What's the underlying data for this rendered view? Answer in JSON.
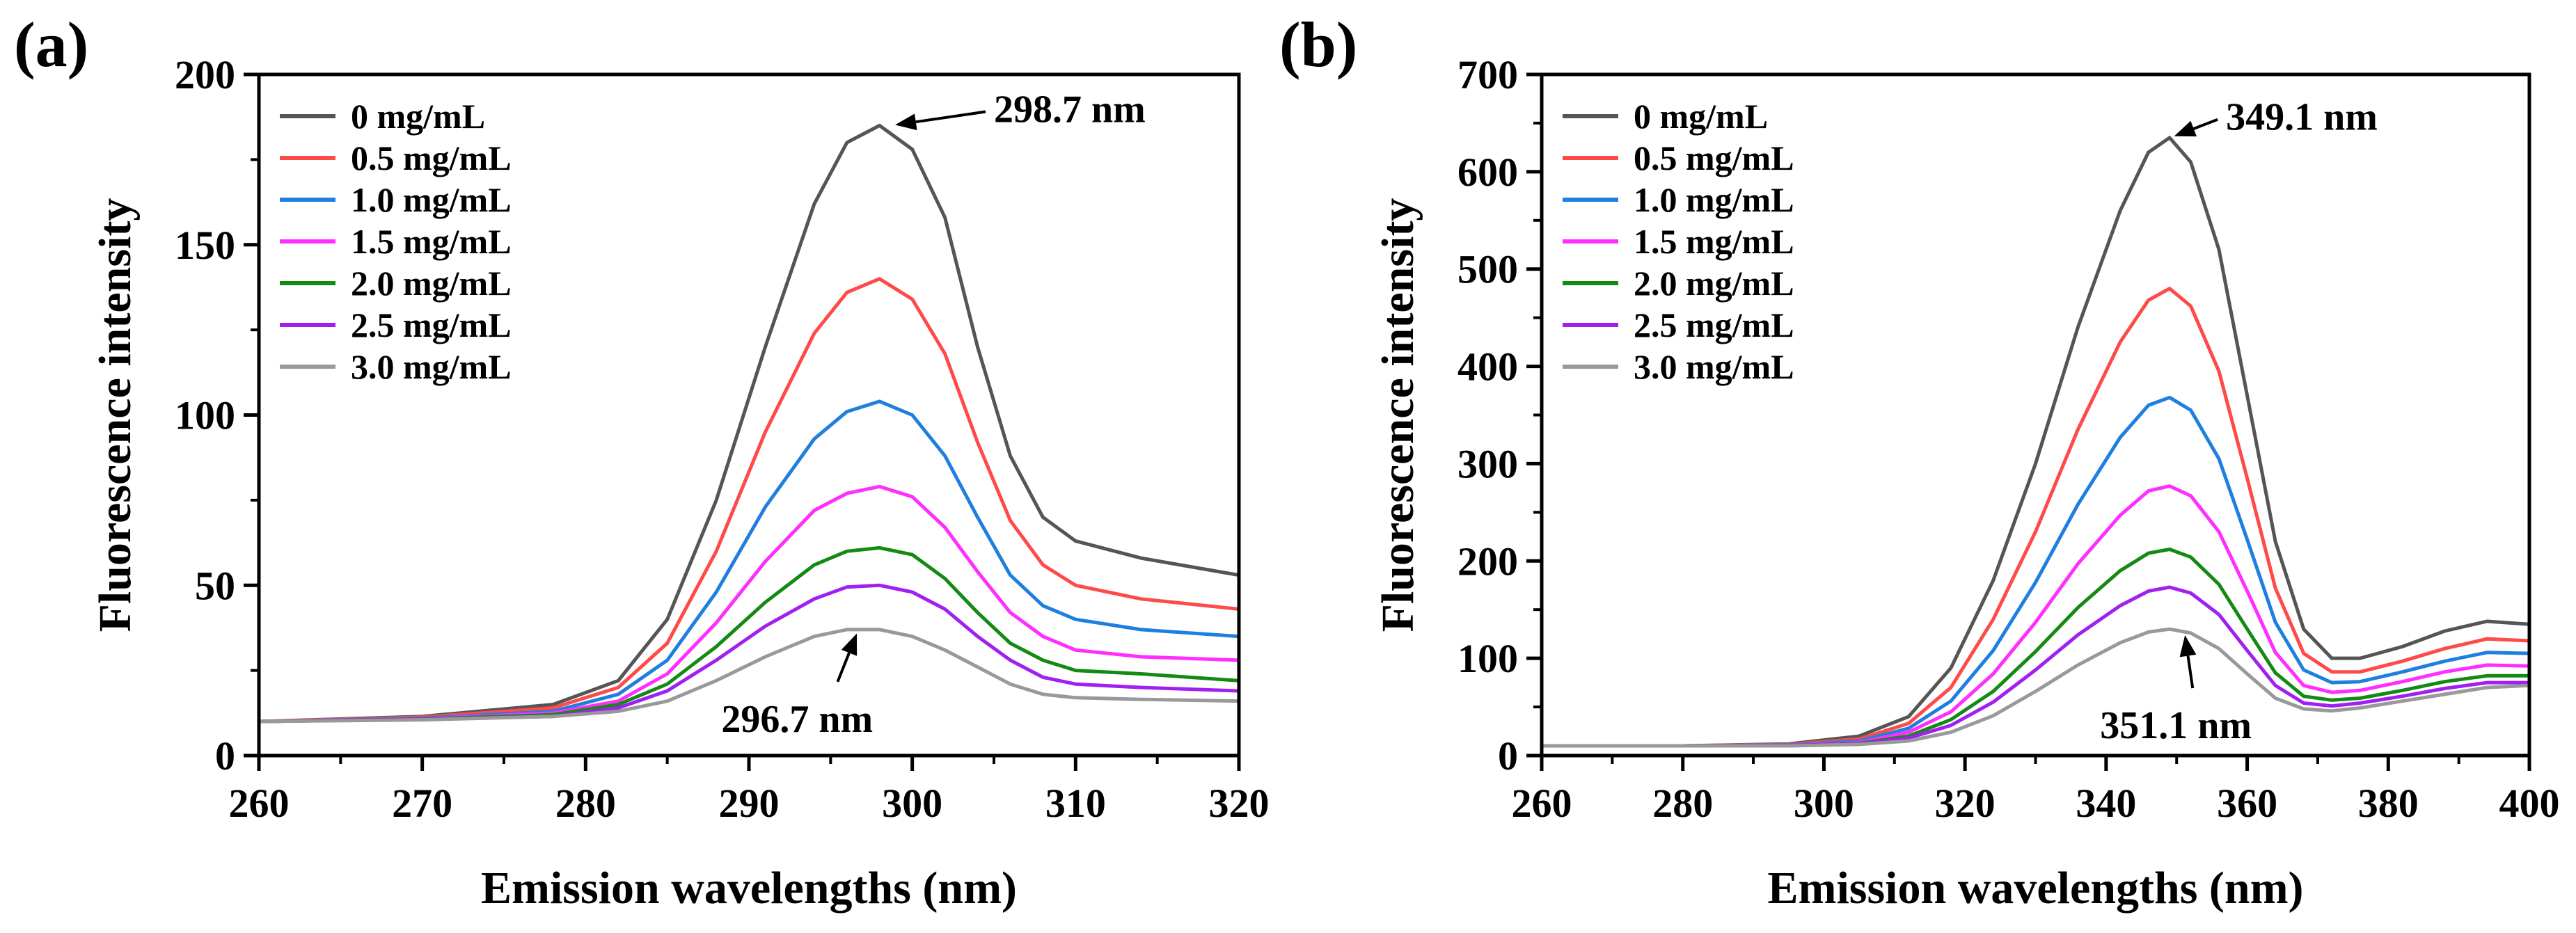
{
  "chart_data": [
    {
      "panel_label": "(a)",
      "type": "line",
      "xlabel": "Emission wavelengths (nm)",
      "ylabel": "Fluorescence intensity",
      "xlim": [
        260,
        320
      ],
      "ylim": [
        0,
        200
      ],
      "xticks": [
        260,
        270,
        280,
        290,
        300,
        310,
        320
      ],
      "yticks": [
        0,
        50,
        100,
        150,
        200
      ],
      "legend_position": "top-left",
      "series": [
        {
          "name": "0 mg/mL",
          "color": "#555555",
          "x": [
            260,
            270,
            278,
            282,
            285,
            288,
            291,
            294,
            296,
            298,
            300,
            302,
            304,
            306,
            308,
            310,
            314,
            320
          ],
          "y": [
            10,
            11.5,
            15,
            22,
            40,
            75,
            120,
            162,
            180,
            185,
            178,
            158,
            120,
            88,
            70,
            63,
            58,
            53
          ]
        },
        {
          "name": "0.5 mg/mL",
          "color": "#ff4a4a",
          "x": [
            260,
            270,
            278,
            282,
            285,
            288,
            291,
            294,
            296,
            298,
            300,
            302,
            304,
            306,
            308,
            310,
            314,
            320
          ],
          "y": [
            10,
            11.3,
            14,
            20,
            33,
            60,
            95,
            124,
            136,
            140,
            134,
            118,
            92,
            69,
            56,
            50,
            46,
            43
          ]
        },
        {
          "name": "1.0 mg/mL",
          "color": "#1e7fe0",
          "x": [
            260,
            270,
            278,
            282,
            285,
            288,
            291,
            294,
            296,
            298,
            300,
            302,
            304,
            306,
            308,
            310,
            314,
            320
          ],
          "y": [
            10,
            11,
            13,
            18,
            28,
            48,
            73,
            93,
            101,
            104,
            100,
            88,
            70,
            53,
            44,
            40,
            37,
            35
          ]
        },
        {
          "name": "1.5 mg/mL",
          "color": "#ff2eff",
          "x": [
            260,
            270,
            278,
            282,
            285,
            288,
            291,
            294,
            296,
            298,
            300,
            302,
            304,
            306,
            308,
            310,
            314,
            320
          ],
          "y": [
            10,
            10.8,
            12.5,
            16,
            24,
            39,
            57,
            72,
            77,
            79,
            76,
            67,
            54,
            42,
            35,
            31,
            29,
            28
          ]
        },
        {
          "name": "2.0 mg/mL",
          "color": "#138a13",
          "x": [
            260,
            270,
            278,
            282,
            285,
            288,
            291,
            294,
            296,
            298,
            300,
            302,
            304,
            306,
            308,
            310,
            314,
            320
          ],
          "y": [
            10,
            10.7,
            12,
            15,
            21,
            32,
            45,
            56,
            60,
            61,
            59,
            52,
            42,
            33,
            28,
            25,
            24,
            22
          ]
        },
        {
          "name": "2.5 mg/mL",
          "color": "#a020f0",
          "x": [
            260,
            270,
            278,
            282,
            285,
            288,
            291,
            294,
            296,
            298,
            300,
            302,
            304,
            306,
            308,
            310,
            314,
            320
          ],
          "y": [
            10,
            10.6,
            11.5,
            14,
            19,
            28,
            38,
            46,
            49.5,
            50,
            48,
            43,
            35,
            28,
            23,
            21,
            20,
            19
          ]
        },
        {
          "name": "3.0 mg/mL",
          "color": "#999999",
          "x": [
            260,
            270,
            278,
            282,
            285,
            288,
            291,
            294,
            296,
            298,
            300,
            302,
            304,
            306,
            308,
            310,
            314,
            320
          ],
          "y": [
            10,
            10.5,
            11.5,
            13,
            16,
            22,
            29,
            35,
            37,
            37,
            35,
            31,
            26,
            21,
            18,
            17,
            16.5,
            16
          ]
        }
      ],
      "annotations": [
        {
          "text": "298.7 nm",
          "x": 298.7,
          "y": 185,
          "text_x": 305,
          "text_y": 186
        },
        {
          "text": "296.7 nm",
          "x": 296.7,
          "y": 37,
          "text_x": 293,
          "text_y": 9
        }
      ]
    },
    {
      "panel_label": "(b)",
      "type": "line",
      "xlabel": "Emission wavelengths (nm)",
      "ylabel": "Fluorescence intensity",
      "xlim": [
        260,
        400
      ],
      "ylim": [
        0,
        700
      ],
      "xticks": [
        260,
        280,
        300,
        320,
        340,
        360,
        380,
        400
      ],
      "yticks": [
        0,
        100,
        200,
        300,
        400,
        500,
        600,
        700
      ],
      "legend_position": "top-left",
      "series": [
        {
          "name": "0 mg/mL",
          "color": "#555555",
          "x": [
            260,
            280,
            295,
            305,
            312,
            318,
            324,
            330,
            336,
            342,
            346,
            349,
            352,
            356,
            360,
            364,
            368,
            372,
            376,
            382,
            388,
            394,
            400
          ],
          "y": [
            10,
            10,
            12,
            20,
            40,
            90,
            180,
            300,
            440,
            560,
            620,
            635,
            610,
            520,
            370,
            220,
            130,
            100,
            100,
            112,
            128,
            138,
            135
          ]
        },
        {
          "name": "0.5 mg/mL",
          "color": "#ff4a4a",
          "x": [
            260,
            280,
            295,
            305,
            312,
            318,
            324,
            330,
            336,
            342,
            346,
            349,
            352,
            356,
            360,
            364,
            368,
            372,
            376,
            382,
            388,
            394,
            400
          ],
          "y": [
            10,
            10,
            11.5,
            17,
            33,
            70,
            140,
            230,
            335,
            425,
            468,
            480,
            462,
            395,
            285,
            172,
            105,
            86,
            86,
            97,
            110,
            120,
            118
          ]
        },
        {
          "name": "1.0 mg/mL",
          "color": "#1e7fe0",
          "x": [
            260,
            280,
            295,
            305,
            312,
            318,
            324,
            330,
            336,
            342,
            346,
            349,
            352,
            356,
            360,
            364,
            368,
            372,
            376,
            382,
            388,
            394,
            400
          ],
          "y": [
            10,
            10,
            11,
            15,
            28,
            56,
            108,
            178,
            258,
            327,
            360,
            368,
            355,
            305,
            222,
            137,
            88,
            75,
            76,
            86,
            97,
            106,
            105
          ]
        },
        {
          "name": "1.5 mg/mL",
          "color": "#ff2eff",
          "x": [
            260,
            280,
            295,
            305,
            312,
            318,
            324,
            330,
            336,
            342,
            346,
            349,
            352,
            356,
            360,
            364,
            368,
            372,
            376,
            382,
            388,
            394,
            400
          ],
          "y": [
            10,
            10,
            10.5,
            13.5,
            24,
            45,
            84,
            137,
            197,
            247,
            272,
            277,
            267,
            230,
            169,
            106,
            72,
            65,
            67,
            76,
            86,
            93,
            92
          ]
        },
        {
          "name": "2.0 mg/mL",
          "color": "#138a13",
          "x": [
            260,
            280,
            295,
            305,
            312,
            318,
            324,
            330,
            336,
            342,
            346,
            349,
            352,
            356,
            360,
            364,
            368,
            372,
            376,
            382,
            388,
            394,
            400
          ],
          "y": [
            10,
            10,
            10.3,
            12.5,
            20,
            37,
            66,
            107,
            152,
            190,
            208,
            212,
            204,
            176,
            130,
            85,
            61,
            57,
            59,
            67,
            76,
            82,
            82
          ]
        },
        {
          "name": "2.5 mg/mL",
          "color": "#a020f0",
          "x": [
            260,
            280,
            295,
            305,
            312,
            318,
            324,
            330,
            336,
            342,
            346,
            349,
            352,
            356,
            360,
            364,
            368,
            372,
            376,
            382,
            388,
            394,
            400
          ],
          "y": [
            10,
            10,
            10.2,
            12,
            18,
            31,
            55,
            88,
            124,
            154,
            169,
            173,
            167,
            145,
            108,
            72,
            54,
            51,
            54,
            61,
            69,
            75,
            75
          ]
        },
        {
          "name": "3.0 mg/mL",
          "color": "#999999",
          "x": [
            260,
            280,
            295,
            305,
            312,
            318,
            324,
            330,
            336,
            342,
            346,
            349,
            352,
            356,
            360,
            364,
            368,
            372,
            376,
            382,
            388,
            394,
            400
          ],
          "y": [
            10,
            10,
            10,
            11.5,
            15,
            24,
            41,
            66,
            93,
            116,
            127,
            130,
            126,
            110,
            84,
            59,
            48,
            46,
            49,
            56,
            63,
            70,
            72
          ]
        }
      ],
      "annotations": [
        {
          "text": "349.1 nm",
          "x": 349.1,
          "y": 635,
          "text_x": 357,
          "text_y": 643
        },
        {
          "text": "351.1 nm",
          "x": 351.1,
          "y": 128,
          "text_x": 350,
          "text_y": 25
        }
      ]
    }
  ]
}
